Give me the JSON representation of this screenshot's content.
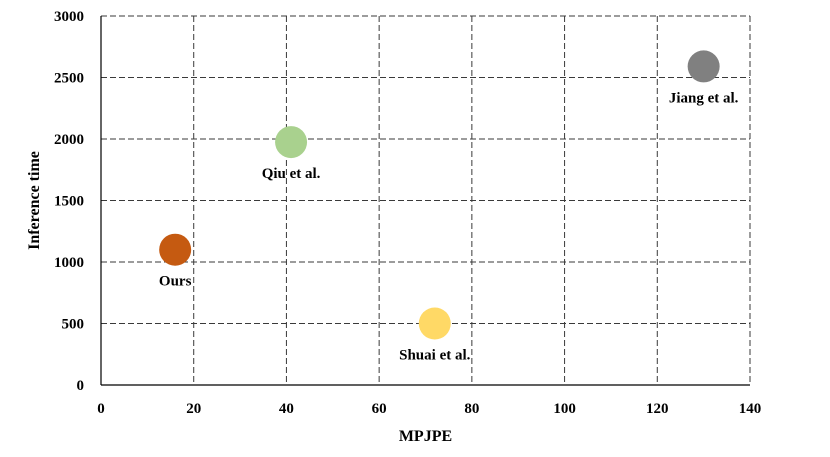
{
  "chart_data": {
    "type": "scatter",
    "xlabel": "MPJPE",
    "ylabel": "Inference time",
    "xlim": [
      0,
      140
    ],
    "ylim": [
      0,
      3000
    ],
    "xticks": [
      0,
      20,
      40,
      60,
      80,
      100,
      120,
      140
    ],
    "yticks": [
      0,
      500,
      1000,
      1500,
      2000,
      2500,
      3000
    ],
    "grid": true,
    "points": [
      {
        "label": "Ours",
        "x": 16,
        "y": 1100,
        "color": "#c55a11"
      },
      {
        "label": "Qiu et al.",
        "x": 41,
        "y": 1975,
        "color": "#a9d18e"
      },
      {
        "label": "Shuai et al.",
        "x": 72,
        "y": 500,
        "color": "#ffd966"
      },
      {
        "label": "Jiang et al.",
        "x": 130,
        "y": 2590,
        "color": "#808080"
      }
    ]
  }
}
